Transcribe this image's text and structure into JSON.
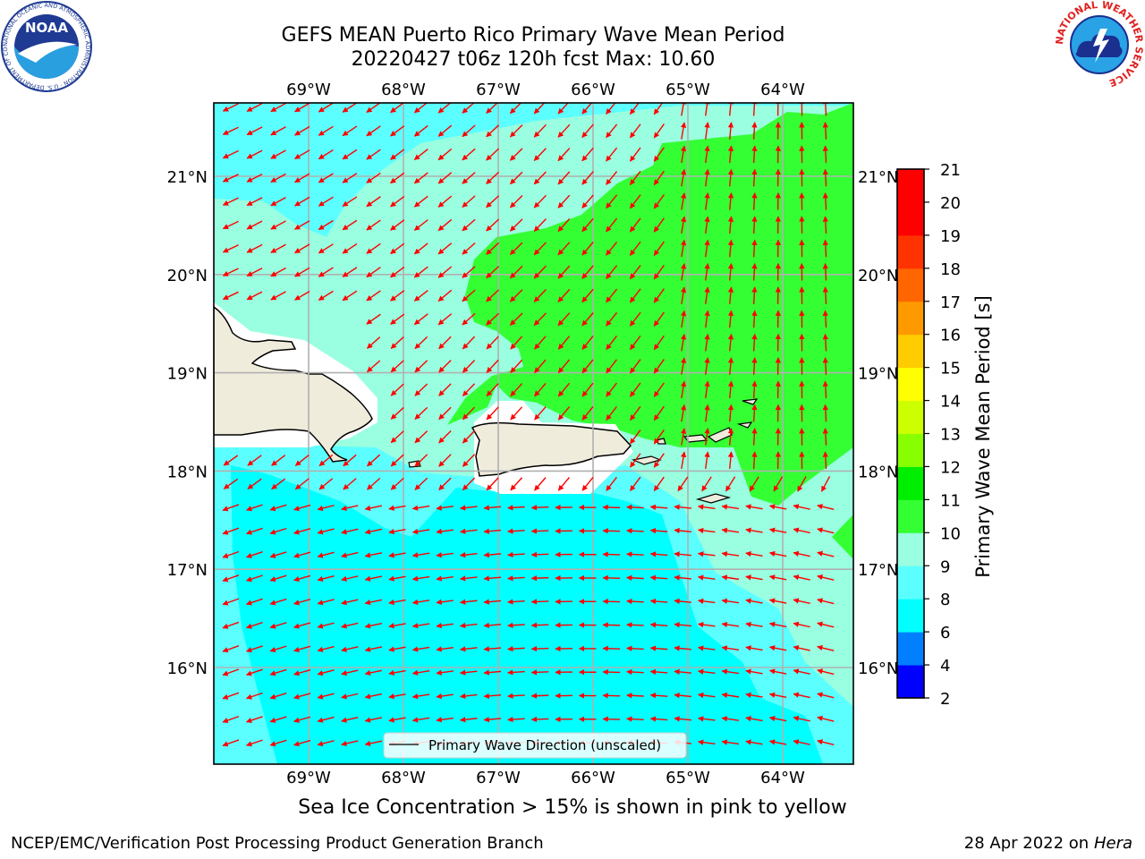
{
  "header": {
    "title_line1": "GEFS MEAN Puerto Rico Primary Wave Mean Period",
    "title_line2": "20220427 t06z 120h fcst   Max: 10.60"
  },
  "logos": {
    "left": {
      "name": "noaa-logo",
      "text": "NOAA",
      "ring_text": "NATIONAL OCEANIC AND ATMOSPHERIC ADMINISTRATION · U.S. DEPARTMENT OF COMMERCE"
    },
    "right": {
      "name": "nws-logo",
      "ring_text": "NATIONAL WEATHER SERVICE"
    }
  },
  "map": {
    "lon_labels": [
      "69°W",
      "68°W",
      "67°W",
      "66°W",
      "65°W",
      "64°W"
    ],
    "lat_labels": [
      "21°N",
      "20°N",
      "19°N",
      "18°N",
      "17°N",
      "16°N"
    ],
    "legend_label": "Primary Wave Direction (unscaled)",
    "arrow_color": "#ff0000",
    "land_color": "#efecdc"
  },
  "colorbar": {
    "label": "Primary Wave Mean Period [s]",
    "levels": [
      "2",
      "4",
      "6",
      "8",
      "9",
      "10",
      "11",
      "12",
      "13",
      "14",
      "15",
      "16",
      "17",
      "18",
      "19",
      "20",
      "21"
    ],
    "colors": [
      "#0000ff",
      "#0080ff",
      "#00ffff",
      "#5cffff",
      "#99ffe0",
      "#33ff33",
      "#00ee00",
      "#88ff00",
      "#ccff00",
      "#ffff00",
      "#ffcc00",
      "#ff9900",
      "#ff6600",
      "#ff3300",
      "#ff0000",
      "#ff0000"
    ]
  },
  "chart_data": {
    "type": "heatmap",
    "title": "GEFS MEAN Puerto Rico Primary Wave Mean Period",
    "subtitle": "20220427 t06z 120h fcst   Max: 10.60",
    "x_ticks": [
      "69°W",
      "68°W",
      "67°W",
      "66°W",
      "65°W",
      "64°W"
    ],
    "y_ticks": [
      "21°N",
      "20°N",
      "19°N",
      "18°N",
      "17°N",
      "16°N"
    ],
    "colorbar_label": "Primary Wave Mean Period [s]",
    "colorbar_levels": [
      2,
      4,
      6,
      8,
      9,
      10,
      11,
      12,
      13,
      14,
      15,
      16,
      17,
      18,
      19,
      20,
      21
    ],
    "max_value": 10.6,
    "legend": [
      "Primary Wave Direction (unscaled)"
    ],
    "grid": true
  },
  "footer": {
    "note": "Sea Ice Concentration > 15% is shown in pink to yellow",
    "left": "NCEP/EMC/Verification Post Processing Product Generation Branch",
    "right_prefix": "28 Apr 2022 on ",
    "right_host": "Hera"
  }
}
